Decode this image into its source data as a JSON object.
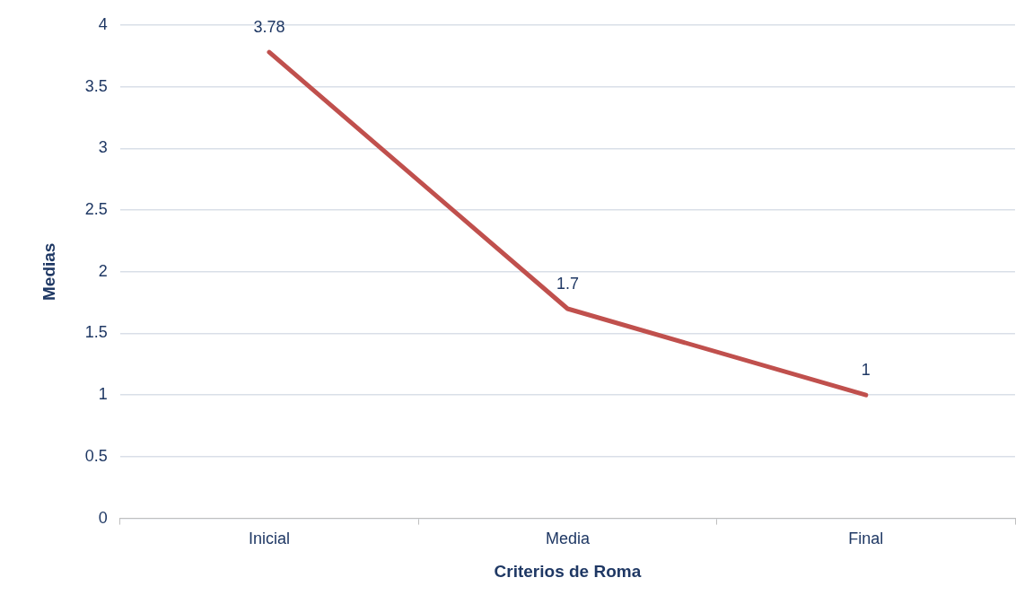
{
  "chart_data": {
    "type": "line",
    "xlabel": "Criterios de Roma",
    "ylabel": "Medias",
    "categories": [
      "Inicial",
      "Media",
      "Final"
    ],
    "series": [
      {
        "color": "#c0504d",
        "values": [
          3.78,
          1.7,
          1
        ]
      }
    ],
    "ylim": [
      0,
      4
    ],
    "yticks": [
      0,
      0.5,
      1,
      1.5,
      2,
      2.5,
      3,
      3.5,
      4
    ],
    "grid": "y",
    "legend": false,
    "marker": "none",
    "line_style": "solid",
    "data_labels": true
  }
}
